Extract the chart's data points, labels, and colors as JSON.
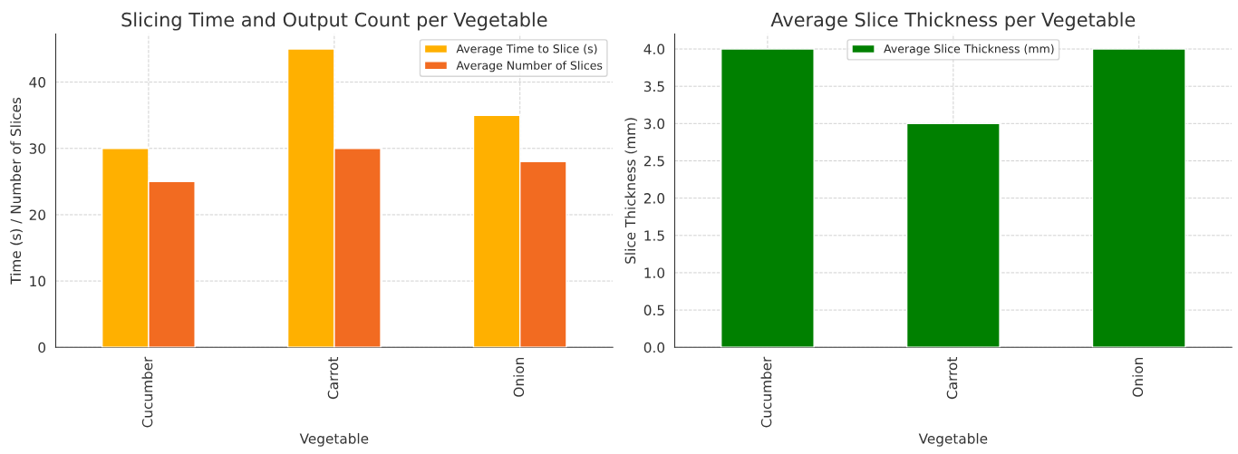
{
  "chart_data": [
    {
      "type": "bar",
      "title": "Slicing Time and Output Count per Vegetable",
      "xlabel": "Vegetable",
      "ylabel": "Time (s) / Number of Slices",
      "categories": [
        "Cucumber",
        "Carrot",
        "Onion"
      ],
      "series": [
        {
          "name": "Average Time to Slice (s)",
          "color": "#ffb000",
          "values": [
            30,
            45,
            35
          ]
        },
        {
          "name": "Average Number of Slices",
          "color": "#f26b21",
          "values": [
            25,
            30,
            28
          ]
        }
      ],
      "ylim": [
        0,
        47.25
      ],
      "yticks": [
        0,
        10,
        20,
        30,
        40
      ],
      "grid": true,
      "legend": "top right"
    },
    {
      "type": "bar",
      "title": "Average Slice Thickness per Vegetable",
      "xlabel": "Vegetable",
      "ylabel": "Slice Thickness (mm)",
      "categories": [
        "Cucumber",
        "Carrot",
        "Onion"
      ],
      "series": [
        {
          "name": "Average Slice Thickness (mm)",
          "color": "#008000",
          "values": [
            4.0,
            3.0,
            4.0
          ]
        }
      ],
      "ylim": [
        0,
        4.2
      ],
      "yticks": [
        {
          "value": 0,
          "label": "0.0"
        },
        {
          "value": 0.5,
          "label": "0.5"
        },
        {
          "value": 1,
          "label": "1.0"
        },
        {
          "value": 1.5,
          "label": "1.5"
        },
        {
          "value": 2,
          "label": "2.0"
        },
        {
          "value": 2.5,
          "label": "2.5"
        },
        {
          "value": 3,
          "label": "3.0"
        },
        {
          "value": 3.5,
          "label": "3.5"
        },
        {
          "value": 4,
          "label": "4.0"
        }
      ],
      "grid": true,
      "legend": "top"
    }
  ]
}
